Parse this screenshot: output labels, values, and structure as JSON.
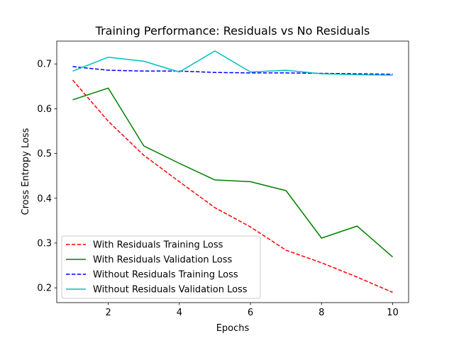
{
  "chart_data": {
    "type": "line",
    "title": "Training Performance: Residuals vs No Residuals",
    "xlabel": "Epochs",
    "ylabel": "Cross Entropy Loss",
    "xlim": [
      0.55,
      10.45
    ],
    "ylim": [
      0.167,
      0.751
    ],
    "xticks": [
      2,
      4,
      6,
      8,
      10
    ],
    "yticks": [
      0.2,
      0.3,
      0.4,
      0.5,
      0.6,
      0.7
    ],
    "xtick_labels": [
      "2",
      "4",
      "6",
      "8",
      "10"
    ],
    "ytick_labels": [
      "0.2",
      "0.3",
      "0.4",
      "0.5",
      "0.6",
      "0.7"
    ],
    "grid": false,
    "legend_position": "lower-left",
    "x": [
      1,
      2,
      3,
      4,
      5,
      6,
      7,
      8,
      9,
      10
    ],
    "series": [
      {
        "name": "With Residuals Training Loss",
        "color": "#ff0000",
        "style": "dashed",
        "values": [
          0.664,
          0.572,
          0.496,
          0.437,
          0.379,
          0.336,
          0.284,
          0.256,
          0.224,
          0.19
        ]
      },
      {
        "name": "With Residuals Validation Loss",
        "color": "#008000",
        "style": "solid",
        "values": [
          0.62,
          0.646,
          0.517,
          0.478,
          0.441,
          0.437,
          0.417,
          0.311,
          0.338,
          0.269
        ]
      },
      {
        "name": "Without Residuals Training Loss",
        "color": "#0000ff",
        "style": "dashed",
        "values": [
          0.694,
          0.686,
          0.684,
          0.684,
          0.681,
          0.68,
          0.68,
          0.679,
          0.678,
          0.677
        ]
      },
      {
        "name": "Without Residuals Validation Loss",
        "color": "#00bfbf",
        "style": "solid",
        "values": [
          0.684,
          0.715,
          0.706,
          0.682,
          0.729,
          0.682,
          0.686,
          0.678,
          0.676,
          0.675
        ]
      }
    ]
  }
}
